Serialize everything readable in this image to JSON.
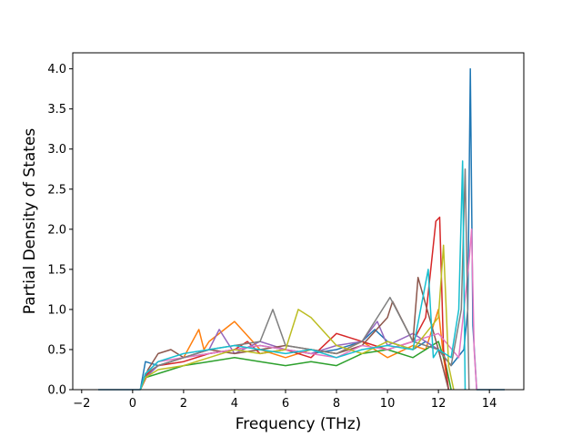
{
  "chart_data": {
    "type": "line",
    "title": "",
    "xlabel": "Frequency (THz)",
    "ylabel": "Partial Density of States",
    "xlim": [
      -2.35,
      15.35
    ],
    "ylim": [
      0,
      4.2
    ],
    "xticks": [
      -2,
      0,
      2,
      4,
      6,
      8,
      10,
      12,
      14
    ],
    "yticks": [
      0.0,
      0.5,
      1.0,
      1.5,
      2.0,
      2.5,
      3.0,
      3.5,
      4.0
    ],
    "xtick_labels": [
      "−2",
      "0",
      "2",
      "4",
      "6",
      "8",
      "10",
      "12",
      "14"
    ],
    "ytick_labels": [
      "0.0",
      "0.5",
      "1.0",
      "1.5",
      "2.0",
      "2.5",
      "3.0",
      "3.5",
      "4.0"
    ],
    "grid": false,
    "legend": "none",
    "colors": [
      "#1f77b4",
      "#ff7f0e",
      "#2ca02c",
      "#d62728",
      "#9467bd",
      "#8c564b",
      "#e377c2",
      "#7f7f7f",
      "#bcbd22",
      "#17becf"
    ],
    "series": [
      {
        "color": "#1f77b4",
        "x": [
          -1.35,
          0.3,
          0.5,
          1,
          2,
          3,
          4,
          5,
          6,
          7,
          8,
          9,
          9.5,
          10,
          10.5,
          11,
          11.5,
          12,
          12.5,
          13,
          13.15,
          13.25,
          13.35,
          13.5,
          14.6
        ],
        "y": [
          0,
          0,
          0.35,
          0.3,
          0.4,
          0.45,
          0.5,
          0.55,
          0.5,
          0.45,
          0.5,
          0.6,
          0.75,
          0.6,
          0.55,
          0.5,
          0.6,
          0.5,
          0.3,
          0.5,
          1.0,
          4.0,
          0.8,
          0,
          0
        ]
      },
      {
        "color": "#ff7f0e",
        "x": [
          0.3,
          0.6,
          1,
          2,
          2.6,
          2.8,
          3,
          4,
          5,
          6,
          7,
          8,
          9,
          10,
          11,
          11.5,
          12,
          12.2,
          12.4
        ],
        "y": [
          0,
          0.2,
          0.3,
          0.4,
          0.75,
          0.5,
          0.6,
          0.85,
          0.5,
          0.4,
          0.5,
          0.45,
          0.6,
          0.4,
          0.55,
          0.5,
          1.0,
          0.4,
          0
        ]
      },
      {
        "color": "#2ca02c",
        "x": [
          0.3,
          0.5,
          1,
          2,
          3,
          4,
          5,
          6,
          7,
          8,
          9,
          10,
          11,
          12,
          12.3,
          12.5
        ],
        "y": [
          0,
          0.15,
          0.2,
          0.3,
          0.35,
          0.4,
          0.35,
          0.3,
          0.35,
          0.3,
          0.45,
          0.5,
          0.4,
          0.6,
          0.3,
          0
        ]
      },
      {
        "color": "#d62728",
        "x": [
          0.3,
          0.6,
          1,
          2,
          3,
          4,
          4.5,
          5,
          6,
          7,
          8,
          9,
          10,
          11,
          11.5,
          11.9,
          12.05,
          12.2,
          12.4
        ],
        "y": [
          0,
          0.2,
          0.3,
          0.35,
          0.45,
          0.5,
          0.6,
          0.45,
          0.5,
          0.4,
          0.7,
          0.6,
          0.5,
          0.6,
          0.9,
          2.1,
          2.15,
          0.5,
          0
        ]
      },
      {
        "color": "#9467bd",
        "x": [
          0.3,
          0.5,
          1,
          2,
          3,
          3.4,
          4,
          5,
          6,
          7,
          8,
          9,
          9.6,
          10,
          11,
          12,
          12.4
        ],
        "y": [
          0,
          0.15,
          0.3,
          0.4,
          0.5,
          0.75,
          0.45,
          0.6,
          0.5,
          0.45,
          0.55,
          0.6,
          0.85,
          0.55,
          0.7,
          0.5,
          0
        ]
      },
      {
        "color": "#8c564b",
        "x": [
          0.3,
          0.6,
          1,
          1.5,
          2,
          3,
          4,
          5,
          6,
          7,
          8,
          9,
          10,
          10.2,
          11,
          11.2,
          12,
          12.4
        ],
        "y": [
          0,
          0.25,
          0.45,
          0.5,
          0.4,
          0.5,
          0.45,
          0.5,
          0.55,
          0.5,
          0.45,
          0.55,
          0.9,
          1.1,
          0.6,
          1.4,
          0.5,
          0
        ]
      },
      {
        "color": "#e377c2",
        "x": [
          0.3,
          0.5,
          1,
          2,
          3,
          4,
          5,
          6,
          7,
          8,
          9,
          10,
          11,
          12,
          12.8,
          13.2,
          13.3,
          13.4,
          13.5
        ],
        "y": [
          0,
          0.2,
          0.35,
          0.4,
          0.45,
          0.5,
          0.55,
          0.5,
          0.45,
          0.4,
          0.55,
          0.5,
          0.6,
          0.7,
          0.4,
          1.6,
          2.0,
          0.5,
          0
        ]
      },
      {
        "color": "#7f7f7f",
        "x": [
          0.3,
          0.5,
          1,
          2,
          3,
          4,
          5,
          5.5,
          6,
          7,
          8,
          9,
          10,
          10.1,
          11,
          12,
          12.5,
          12.9,
          13.05,
          13.2
        ],
        "y": [
          0,
          0.2,
          0.3,
          0.4,
          0.5,
          0.55,
          0.6,
          1.0,
          0.55,
          0.5,
          0.45,
          0.6,
          1.1,
          1.15,
          0.6,
          0.5,
          0.3,
          1.0,
          2.75,
          0
        ]
      },
      {
        "color": "#bcbd22",
        "x": [
          0.3,
          0.5,
          1,
          2,
          3,
          4,
          5,
          6,
          6.5,
          7,
          8,
          9,
          10,
          11,
          11.5,
          12,
          12.2,
          12.4,
          12.6
        ],
        "y": [
          0,
          0.15,
          0.25,
          0.3,
          0.4,
          0.5,
          0.45,
          0.5,
          1.0,
          0.9,
          0.55,
          0.45,
          0.6,
          0.5,
          0.7,
          0.9,
          1.8,
          0.3,
          0
        ]
      },
      {
        "color": "#17becf",
        "x": [
          0.3,
          0.5,
          1,
          2,
          3,
          4,
          5,
          6,
          7,
          8,
          9,
          10,
          11,
          11.6,
          11.8,
          12,
          12.5,
          12.8,
          12.95,
          13.05
        ],
        "y": [
          0,
          0.2,
          0.35,
          0.45,
          0.5,
          0.55,
          0.5,
          0.45,
          0.5,
          0.4,
          0.5,
          0.55,
          0.5,
          1.5,
          0.4,
          0.5,
          0.4,
          1.0,
          2.85,
          0
        ]
      }
    ]
  }
}
